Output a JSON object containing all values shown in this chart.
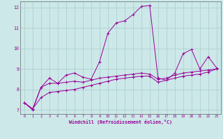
{
  "background_color": "#cce8e8",
  "line_color": "#990099",
  "grid_color": "#aacccc",
  "xlabel": "Windchill (Refroidissement éolien,°C)",
  "xlim": [
    -0.5,
    23.5
  ],
  "ylim": [
    6.8,
    12.3
  ],
  "yticks": [
    7,
    8,
    9,
    10,
    11,
    12
  ],
  "xticks": [
    0,
    1,
    2,
    3,
    4,
    5,
    6,
    7,
    8,
    9,
    10,
    11,
    12,
    13,
    14,
    15,
    16,
    17,
    18,
    19,
    20,
    21,
    22,
    23
  ],
  "line1_x": [
    0,
    1,
    2,
    3,
    4,
    5,
    6,
    7,
    8,
    9,
    10,
    11,
    12,
    13,
    14,
    15,
    16,
    17,
    18,
    19,
    20,
    21,
    22,
    23
  ],
  "line1_y": [
    7.35,
    7.0,
    8.1,
    8.55,
    8.3,
    8.7,
    8.8,
    8.6,
    8.5,
    9.35,
    10.75,
    11.25,
    11.35,
    11.65,
    12.05,
    12.1,
    8.55,
    8.45,
    8.8,
    9.75,
    9.95,
    9.0,
    9.6,
    9.05
  ],
  "line2_x": [
    0,
    1,
    2,
    3,
    4,
    5,
    6,
    7,
    8,
    9,
    10,
    11,
    12,
    13,
    14,
    15,
    16,
    17,
    18,
    19,
    20,
    21,
    22,
    23
  ],
  "line2_y": [
    7.35,
    7.05,
    8.1,
    8.3,
    8.3,
    8.35,
    8.4,
    8.35,
    8.45,
    8.55,
    8.6,
    8.65,
    8.7,
    8.75,
    8.8,
    8.75,
    8.5,
    8.55,
    8.7,
    8.8,
    8.85,
    8.9,
    8.95,
    9.0
  ],
  "line3_x": [
    0,
    1,
    2,
    3,
    4,
    5,
    6,
    7,
    8,
    9,
    10,
    11,
    12,
    13,
    14,
    15,
    16,
    17,
    18,
    19,
    20,
    21,
    22,
    23
  ],
  "line3_y": [
    7.35,
    7.05,
    7.6,
    7.85,
    7.9,
    7.95,
    8.0,
    8.1,
    8.2,
    8.3,
    8.4,
    8.5,
    8.55,
    8.6,
    8.65,
    8.65,
    8.35,
    8.45,
    8.55,
    8.65,
    8.7,
    8.75,
    8.85,
    9.0
  ]
}
